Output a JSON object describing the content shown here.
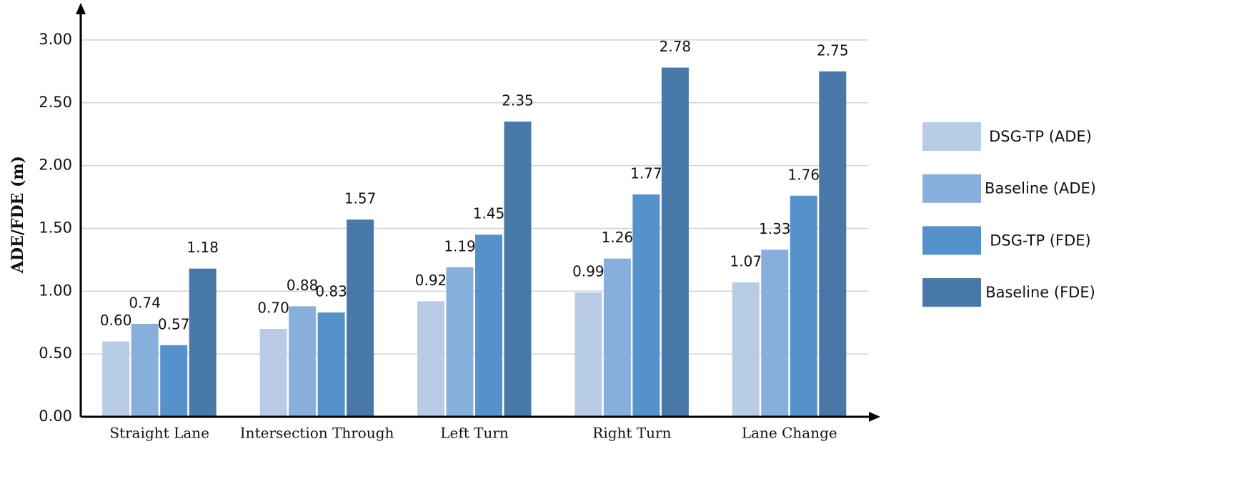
{
  "chart_data": {
    "type": "bar",
    "y_label": "ADE/FDE (m)",
    "categories": [
      "Straight Lane",
      "Intersection Through",
      "Left Turn",
      "Right Turn",
      "Lane Change"
    ],
    "series": [
      {
        "name": "DSG-TP (ADE)",
        "color": "#b8cce6",
        "values": [
          0.6,
          0.7,
          0.92,
          0.99,
          1.07
        ],
        "value_labels": [
          "0.60",
          "0.70",
          "0.92",
          "0.99",
          "1.07"
        ]
      },
      {
        "name": "Baseline (ADE)",
        "color": "#86afdc",
        "values": [
          0.74,
          0.88,
          1.19,
          1.26,
          1.33
        ],
        "value_labels": [
          "0.74",
          "0.88",
          "1.19",
          "1.26",
          "1.33"
        ]
      },
      {
        "name": "DSG-TP (FDE)",
        "color": "#5592cb",
        "values": [
          0.57,
          0.83,
          1.45,
          1.77,
          1.76
        ],
        "value_labels": [
          "0.57",
          "0.83",
          "1.45",
          "1.77",
          "1.76"
        ]
      },
      {
        "name": "Baseline (FDE)",
        "color": "#4878a8",
        "values": [
          1.18,
          1.57,
          2.35,
          2.78,
          2.75
        ],
        "value_labels": [
          "1.18",
          "1.57",
          "2.35",
          "2.78",
          "2.75"
        ]
      }
    ],
    "ylim": [
      0,
      3.25
    ],
    "yticks": [
      {
        "value": 0,
        "label": "0.00"
      },
      {
        "value": 0.5,
        "label": "0.50"
      },
      {
        "value": 1,
        "label": "1.00"
      },
      {
        "value": 1.5,
        "label": "1.50"
      },
      {
        "value": 2,
        "label": "2.00"
      },
      {
        "value": 2.5,
        "label": "2.50"
      },
      {
        "value": 3,
        "label": "3.00"
      }
    ],
    "grid": true,
    "legend": "right"
  }
}
